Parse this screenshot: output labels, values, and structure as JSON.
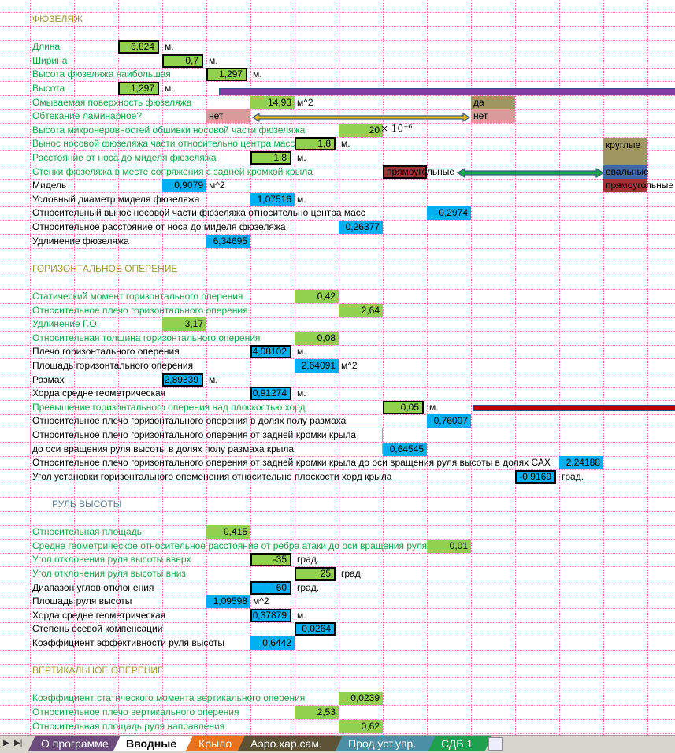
{
  "fuselage": {
    "title": "ФЮЗЕЛЯЖ",
    "length": {
      "label": "Длина",
      "value": "6,824",
      "unit": "м."
    },
    "width": {
      "label": "Ширина",
      "value": "0,7",
      "unit": "м."
    },
    "max_height": {
      "label": "Высота фюзеляжа наибольшая",
      "value": "1,297",
      "unit": "м."
    },
    "height": {
      "label": "Высота",
      "value": "1,297",
      "unit": "м."
    },
    "wetted_surface": {
      "label": "Омываемая поверхность фюзеляжа",
      "value": "14,93",
      "unit": "м^2"
    },
    "laminar": {
      "label": "Обтекание ламинарное?",
      "value": "нет",
      "options": [
        "да",
        "нет"
      ]
    },
    "roughness": {
      "label": "Высота микронеровностей обшивки носовой части фюзеляжа",
      "value": "20",
      "exponent": "× 10⁻⁶"
    },
    "nose_offset": {
      "label": "Вынос носовой фюзеляжа части относительно центра масс",
      "value": "1,8",
      "unit": "м."
    },
    "nose_to_midsection": {
      "label": "Расстояние от носа до миделя фюзеляжа",
      "value": "1,8",
      "unit": "м."
    },
    "walls": {
      "label": "Стенки фюзеляжа в месте сопряжения с задней кромкой крыла",
      "value": "прямоугольные",
      "options": [
        "круглые",
        "овальные",
        "прямоугольные"
      ]
    },
    "midsection": {
      "label": "Мидель",
      "value": "0,9079",
      "unit": "м^2"
    },
    "diameter": {
      "label": "Условный диаметр миделя фюзеляжа",
      "value": "1,07516",
      "unit": "м."
    },
    "rel_nose_offset": {
      "label": "Относительный вынос носовой части фюзеляжа относительно центра масс",
      "value": "0,2974"
    },
    "rel_nose_to_mid": {
      "label": "Относительное расстояние от носа до миделя фюзеляжа",
      "value": "0,26377"
    },
    "elongation": {
      "label": "Удлинение фюзеляжа",
      "value": "6,34695"
    }
  },
  "htail": {
    "title": "ГОРИЗОНТАЛЬНОЕ ОПЕРЕНИЕ",
    "static_moment": {
      "label": "Статический момент горизонтального оперения",
      "value": "0,42"
    },
    "rel_arm": {
      "label": "Относительное плечо  горизонтального оперения",
      "value": "2,64"
    },
    "aspect": {
      "label": "Удлинение Г.О.",
      "value": "3,17"
    },
    "rel_thickness": {
      "label": "Относительная толщина горизонтального оперения",
      "value": "0,08"
    },
    "arm": {
      "label": "Плечо  горизонтального оперения",
      "value": "4,08102",
      "unit": "м."
    },
    "area": {
      "label": "Площадь  горизонтального оперения",
      "value": "2,64091",
      "unit": "м^2"
    },
    "span": {
      "label": "Размах",
      "value": "2,89339",
      "unit": "м."
    },
    "chord": {
      "label": "Хорда средне геометрическая",
      "value": "0,91274",
      "unit": "м."
    },
    "elevation": {
      "label": "Превышение   горизонтального оперения над плоскостью хорд",
      "value": "0,05",
      "unit": "м."
    },
    "arm_halfspan": {
      "label": "Относительное плечо горизонтального оперения в долях полу размаха",
      "value": "0,76007"
    },
    "arm_te_line1": "Относительное плечо горизонтального оперения от задней кромки крыла",
    "arm_te_line2": {
      "label": "до оси вращения  руля высоты в долях полу размаха крыла",
      "value": "0,64545"
    },
    "arm_te_mac": {
      "label": "Относительное плечо горизонтального оперения от задней кромки крыла до оси вращения  руля высоты в долях САХ",
      "value": "2,24188"
    },
    "incidence": {
      "label": "Угол установки горизонтального опеменения относительно плоскости хорд крыла",
      "value": "-0,9169",
      "unit": "град."
    }
  },
  "elevator": {
    "title": "РУЛЬ ВЫСОТЫ",
    "rel_area": {
      "label": "Относительная площадь",
      "value": "0,415"
    },
    "hinge_dist": {
      "label": "Средне геометрическое относительное расстояние от ребра атаки до оси вращения руля",
      "value": "0,01"
    },
    "deflect_up": {
      "label": "Угол отклонения руля высоты вверх",
      "value": "-35",
      "unit": "град."
    },
    "deflect_down": {
      "label": "Угол отклонения руля высоты вниз",
      "value": "25",
      "unit": "град."
    },
    "range": {
      "label": "Диапазон углов отклонения",
      "value": "60",
      "unit": "град."
    },
    "area": {
      "label": "Площадь руля высоты",
      "value": "1,09598",
      "unit": "м^2"
    },
    "chord": {
      "label": "Хорда средне геометрическая",
      "value": "0,37879",
      "unit": "м."
    },
    "compensation": {
      "label": "Степень осевой компенсации",
      "value": "0,0264"
    },
    "efficiency": {
      "label": "Коэффициент эффективности руля высоты",
      "value": "0,6442"
    }
  },
  "vtail": {
    "title": "ВЕРТИКАЛЬНОЕ ОПЕРЕНИЕ",
    "static_moment": {
      "label": "Коэффициент статического момента вертикального оперения",
      "value": "0,0239"
    },
    "rel_arm": {
      "label": "Относительное плечо  вертикального оперения",
      "value": "2,53"
    },
    "rudder_area": {
      "label": "Относительная площадь руля направления",
      "value": "0,62"
    }
  },
  "tabs": [
    {
      "label": "О программе",
      "color": "#6b4c7c"
    },
    {
      "label": "Вводные",
      "color": "#ffffff"
    },
    {
      "label": "Крыло",
      "color": "#e8731e"
    },
    {
      "label": "Аэро.хар.сам.",
      "color": "#5c5236"
    },
    {
      "label": "Прод.уст.упр.",
      "color": "#4b8fa6"
    },
    {
      "label": "СДВ 1",
      "color": "#1fa04e"
    }
  ],
  "colors": {
    "input": "#92d050",
    "computed": "#00b0f0",
    "grid": "#ff7fc8"
  }
}
